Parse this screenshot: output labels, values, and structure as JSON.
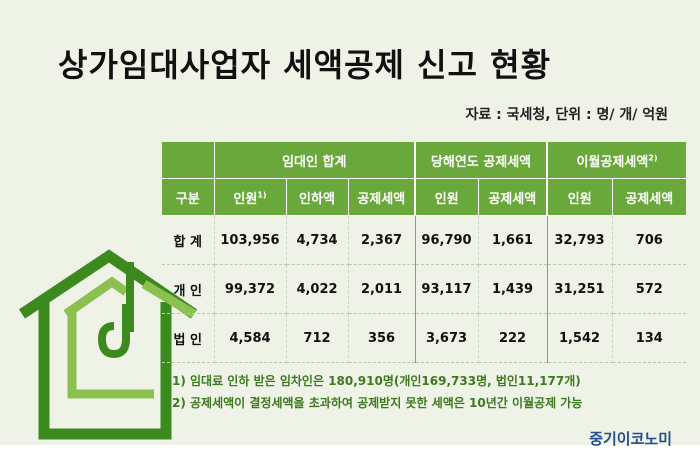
{
  "title": "상가임대사업자 세액공제 신고 현황",
  "source": "자료 : 국세청, 단위 : 명/ 개/ 억원",
  "table": {
    "groups": [
      {
        "label": "임대인 합계"
      },
      {
        "label": "당해연도 공제세액"
      },
      {
        "label": "이월공제세액",
        "sup": "2)"
      }
    ],
    "columns": [
      {
        "label": "구분"
      },
      {
        "label": "인원",
        "sup": "1)"
      },
      {
        "label": "인하액"
      },
      {
        "label": "공제세액"
      },
      {
        "label": "인원"
      },
      {
        "label": "공제세액"
      },
      {
        "label": "인원"
      },
      {
        "label": "공제세액"
      }
    ],
    "rows": [
      [
        "합 계",
        "103,956",
        "4,734",
        "2,367",
        "96,790",
        "1,661",
        "32,793",
        "706"
      ],
      [
        "개 인",
        "99,372",
        "4,022",
        "2,011",
        "93,117",
        "1,439",
        "31,251",
        "572"
      ],
      [
        "법 인",
        "4,584",
        "712",
        "356",
        "3,673",
        "222",
        "1,542",
        "134"
      ]
    ]
  },
  "notes": [
    "1) 임대료 인하 받은 임차인은 180,910명(개인169,733명, 법인11,177개)",
    "2) 공제세액이 결정세액을 초과하여 공제받지 못한 세액은 10년간 이월공제 가능"
  ],
  "brand": "중기이코노미",
  "colors": {
    "header_green": "#6aa83c",
    "house_green_dark": "#3c8a1e",
    "house_green_light": "#8cc152",
    "note_green": "#3d7a1f",
    "brand_blue": "#1f4e8c",
    "background": "#eef2e7"
  }
}
